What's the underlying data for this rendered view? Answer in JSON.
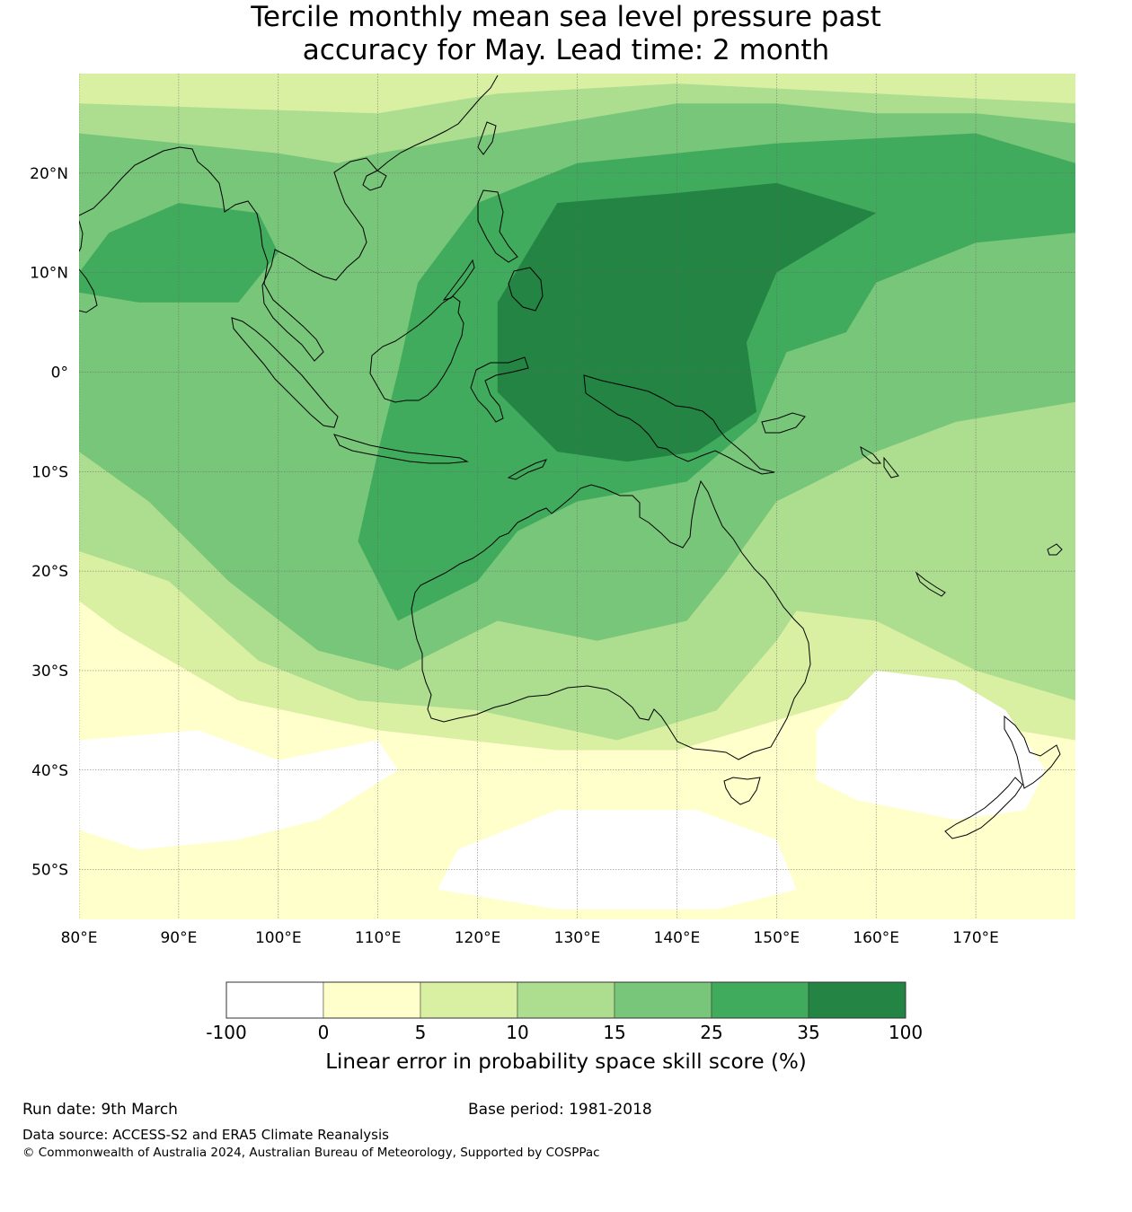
{
  "title_line1": "Tercile monthly mean sea level pressure past",
  "title_line2": "accuracy for May. Lead time: 2 month",
  "map": {
    "region": "Australia, Maritime Continent, western Pacific",
    "lon_range": [
      80,
      180
    ],
    "lat_range": [
      -55,
      30
    ],
    "lon_labels": [
      {
        "lon": 80,
        "text": "80°E"
      },
      {
        "lon": 90,
        "text": "90°E"
      },
      {
        "lon": 100,
        "text": "100°E"
      },
      {
        "lon": 110,
        "text": "110°E"
      },
      {
        "lon": 120,
        "text": "120°E"
      },
      {
        "lon": 130,
        "text": "130°E"
      },
      {
        "lon": 140,
        "text": "140°E"
      },
      {
        "lon": 150,
        "text": "150°E"
      },
      {
        "lon": 160,
        "text": "160°E"
      },
      {
        "lon": 170,
        "text": "170°E"
      }
    ],
    "lat_labels": [
      {
        "lat": 20,
        "text": "20°N"
      },
      {
        "lat": 10,
        "text": "10°N"
      },
      {
        "lat": 0,
        "text": "0°"
      },
      {
        "lat": -10,
        "text": "10°S"
      },
      {
        "lat": -20,
        "text": "20°S"
      },
      {
        "lat": -30,
        "text": "30°S"
      },
      {
        "lat": -40,
        "text": "40°S"
      },
      {
        "lat": -50,
        "text": "50°S"
      }
    ],
    "skill_regions": [
      {
        "name": "tropical-west-pacific-core",
        "class": 6,
        "color": "#238443",
        "lonlat": [
          [
            122,
            7
          ],
          [
            128,
            17
          ],
          [
            140,
            18
          ],
          [
            150,
            19
          ],
          [
            160,
            16
          ],
          [
            150,
            10
          ],
          [
            147,
            3
          ],
          [
            148,
            -4
          ],
          [
            142,
            -8
          ],
          [
            135,
            -9
          ],
          [
            128,
            -8
          ],
          [
            122,
            -2
          ]
        ]
      },
      {
        "name": "maritime-continent-band",
        "class": 5,
        "color": "#41ab5d",
        "lonlat": [
          [
            114,
            9
          ],
          [
            120,
            17
          ],
          [
            130,
            21
          ],
          [
            150,
            23
          ],
          [
            170,
            24
          ],
          [
            180,
            21
          ],
          [
            180,
            14
          ],
          [
            170,
            13
          ],
          [
            160,
            9
          ],
          [
            157,
            4
          ],
          [
            151,
            2
          ],
          [
            148,
            -5
          ],
          [
            141,
            -11
          ],
          [
            130,
            -13
          ],
          [
            124,
            -16
          ],
          [
            120,
            -21
          ],
          [
            112,
            -25
          ],
          [
            108,
            -17
          ],
          [
            110,
            -8
          ],
          [
            112,
            0
          ]
        ]
      },
      {
        "name": "indian-ocean-north",
        "class": 5,
        "color": "#41ab5d",
        "lonlat": [
          [
            80,
            10
          ],
          [
            83,
            14
          ],
          [
            90,
            17
          ],
          [
            98,
            16
          ],
          [
            100,
            12
          ],
          [
            96,
            7
          ],
          [
            86,
            7
          ],
          [
            80,
            8
          ]
        ]
      },
      {
        "name": "broad-skill",
        "class": 4,
        "color": "#78c679",
        "lonlat": [
          [
            80,
            24
          ],
          [
            90,
            23
          ],
          [
            100,
            22
          ],
          [
            106,
            21
          ],
          [
            110,
            22
          ],
          [
            122,
            24
          ],
          [
            140,
            27
          ],
          [
            150,
            27
          ],
          [
            160,
            26
          ],
          [
            170,
            26
          ],
          [
            180,
            25
          ],
          [
            180,
            -3
          ],
          [
            168,
            -5
          ],
          [
            160,
            -8
          ],
          [
            154,
            -11
          ],
          [
            150,
            -13
          ],
          [
            145,
            -20
          ],
          [
            141,
            -25
          ],
          [
            132,
            -27
          ],
          [
            122,
            -25
          ],
          [
            112,
            -30
          ],
          [
            104,
            -28
          ],
          [
            95,
            -21
          ],
          [
            87,
            -13
          ],
          [
            80,
            -8
          ]
        ]
      },
      {
        "name": "moderate-skill",
        "class": 3,
        "color": "#addd8e",
        "lonlat": [
          [
            80,
            27
          ],
          [
            110,
            26
          ],
          [
            122,
            28
          ],
          [
            140,
            29
          ],
          [
            160,
            28
          ],
          [
            180,
            27
          ],
          [
            180,
            -33
          ],
          [
            170,
            -30
          ],
          [
            160,
            -25
          ],
          [
            152,
            -24
          ],
          [
            150,
            -27
          ],
          [
            144,
            -34
          ],
          [
            134,
            -37
          ],
          [
            120,
            -34
          ],
          [
            108,
            -33
          ],
          [
            98,
            -29
          ],
          [
            89,
            -21
          ],
          [
            80,
            -18
          ]
        ]
      },
      {
        "name": "low-skill",
        "class": 2,
        "color": "#d9f0a3",
        "lonlat": [
          [
            80,
            30
          ],
          [
            180,
            30
          ],
          [
            180,
            -37
          ],
          [
            168,
            -35
          ],
          [
            160,
            -32
          ],
          [
            150,
            -35
          ],
          [
            140,
            -38
          ],
          [
            128,
            -38
          ],
          [
            110,
            -36
          ],
          [
            96,
            -33
          ],
          [
            84,
            -26
          ],
          [
            80,
            -23
          ]
        ]
      }
    ],
    "negative_regions": [
      {
        "name": "south-tasman-sea",
        "lonlat": [
          [
            154,
            -36
          ],
          [
            160,
            -30
          ],
          [
            168,
            -31
          ],
          [
            173,
            -34
          ],
          [
            177,
            -40
          ],
          [
            175,
            -44
          ],
          [
            168,
            -45
          ],
          [
            158,
            -43
          ],
          [
            154,
            -41
          ]
        ]
      },
      {
        "name": "southern-indian-ocean-west",
        "lonlat": [
          [
            80,
            -37
          ],
          [
            92,
            -36
          ],
          [
            100,
            -39
          ],
          [
            110,
            -37
          ],
          [
            112,
            -40
          ],
          [
            104,
            -45
          ],
          [
            96,
            -47
          ],
          [
            86,
            -48
          ],
          [
            80,
            -46
          ]
        ]
      },
      {
        "name": "southern-ocean-central",
        "lonlat": [
          [
            118,
            -48
          ],
          [
            128,
            -44
          ],
          [
            142,
            -44
          ],
          [
            150,
            -47
          ],
          [
            152,
            -52
          ],
          [
            144,
            -54
          ],
          [
            128,
            -54
          ],
          [
            116,
            -52
          ]
        ]
      }
    ]
  },
  "legend": {
    "boundaries": [
      "-100",
      "0",
      "5",
      "10",
      "15",
      "25",
      "35",
      "100"
    ],
    "colors": [
      "#ffffff",
      "#ffffcc",
      "#d9f0a3",
      "#addd8e",
      "#78c679",
      "#41ab5d",
      "#238443"
    ],
    "label": "Linear error in probability space skill score (%)"
  },
  "footer": {
    "run_date": "Run date: 9th March",
    "base_period": "Base period: 1981-2018",
    "data_source": "Data source: ACCESS-S2 and ERA5 Climate Reanalysis",
    "copyright": "© Commonwealth of Australia 2024, Australian Bureau of Meteorology, Supported by COSPPac"
  }
}
